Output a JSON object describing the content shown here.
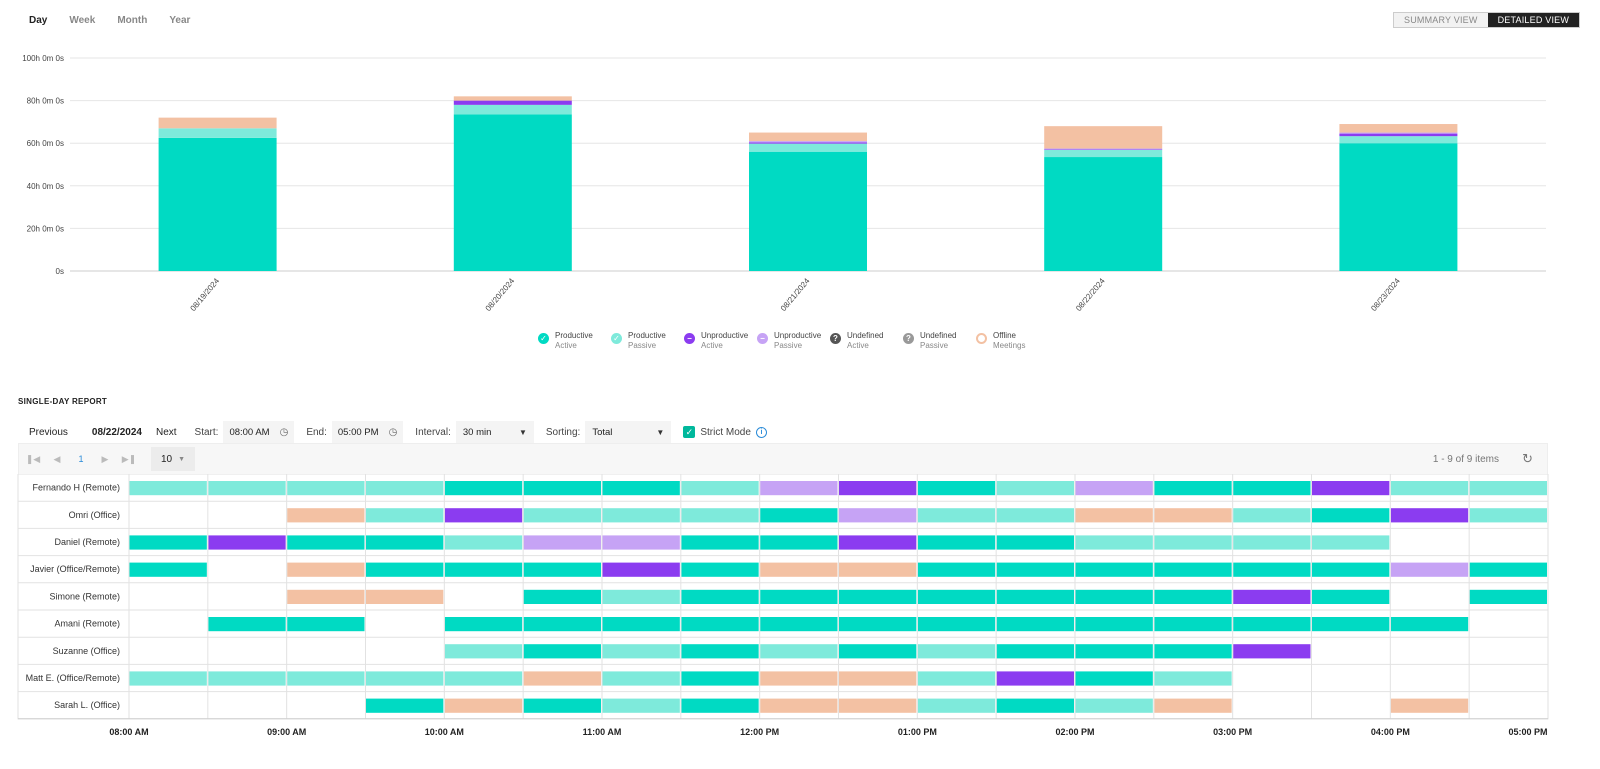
{
  "period_tabs": [
    "Day",
    "Week",
    "Month",
    "Year"
  ],
  "active_tab": "Day",
  "view_toggle": {
    "summary": "SUMMARY VIEW",
    "detailed": "DETAILED VIEW",
    "active": "detailed"
  },
  "colors": {
    "productive_active": "#00dac3",
    "productive_passive": "#7eeadb",
    "unproductive_active": "#8b3cf0",
    "unproductive_passive": "#c6a3f5",
    "undefined_active": "#555555",
    "undefined_passive": "#999999",
    "offline_meetings": "#f3c1a3"
  },
  "chart_data": {
    "type": "bar",
    "stacked": true,
    "categories": [
      "08/19/2024",
      "08/20/2024",
      "08/21/2024",
      "08/22/2024",
      "08/23/2024"
    ],
    "y_ticks": [
      "0s",
      "20h 0m 0s",
      "40h 0m 0s",
      "60h 0m 0s",
      "80h 0m 0s",
      "100h 0m 0s"
    ],
    "ylim": [
      0,
      100
    ],
    "y_unit": "hours",
    "grid": true,
    "legend_position": "bottom",
    "series": [
      {
        "name": "Productive Active",
        "key": "productive_active",
        "values": [
          62.5,
          73.5,
          56,
          53.5,
          60
        ]
      },
      {
        "name": "Productive Passive",
        "key": "productive_passive",
        "values": [
          4.5,
          4.5,
          3.8,
          3.4,
          3.3
        ]
      },
      {
        "name": "Unproductive Active",
        "key": "unproductive_active",
        "values": [
          0,
          2,
          0.6,
          0.3,
          1.2
        ]
      },
      {
        "name": "Unproductive Passive",
        "key": "unproductive_passive",
        "values": [
          0,
          0,
          0.6,
          0.3,
          0.5
        ]
      },
      {
        "name": "Undefined Active",
        "key": "undefined_active",
        "values": [
          0,
          0,
          0,
          0,
          0
        ]
      },
      {
        "name": "Undefined Passive",
        "key": "undefined_passive",
        "values": [
          0,
          0,
          0,
          0,
          0
        ]
      },
      {
        "name": "Offline Meetings",
        "key": "offline_meetings",
        "values": [
          5,
          2,
          4,
          10.5,
          4
        ]
      }
    ]
  },
  "legend": [
    {
      "line1": "Productive",
      "line2": "Active",
      "key": "productive_active",
      "icon": "check"
    },
    {
      "line1": "Productive",
      "line2": "Passive",
      "key": "productive_passive",
      "icon": "check"
    },
    {
      "line1": "Unproductive",
      "line2": "Active",
      "key": "unproductive_active",
      "icon": "minus"
    },
    {
      "line1": "Unproductive",
      "line2": "Passive",
      "key": "unproductive_passive",
      "icon": "minus"
    },
    {
      "line1": "Undefined",
      "line2": "Active",
      "key": "undefined_active",
      "icon": "question"
    },
    {
      "line1": "Undefined",
      "line2": "Passive",
      "key": "undefined_passive",
      "icon": "question"
    },
    {
      "line1": "Offline",
      "line2": "Meetings",
      "key": "offline_meetings",
      "icon": "ring"
    }
  ],
  "report": {
    "title": "SINGLE-DAY REPORT",
    "previous": "Previous",
    "date": "08/22/2024",
    "next": "Next",
    "start_label": "Start:",
    "start_time": "08:00 AM",
    "end_label": "End:",
    "end_time": "05:00 PM",
    "interval_label": "Interval:",
    "interval_value": "30 min",
    "sorting_label": "Sorting:",
    "sorting_value": "Total",
    "strict_mode_label": "Strict Mode",
    "strict_mode": true
  },
  "pager": {
    "current_page": "1",
    "page_size": "10",
    "items_count": "1 - 9 of 9 items"
  },
  "timeline": {
    "time_labels": [
      "08:00 AM",
      "09:00 AM",
      "10:00 AM",
      "11:00 AM",
      "12:00 PM",
      "01:00 PM",
      "02:00 PM",
      "03:00 PM",
      "04:00 PM",
      "05:00 PM"
    ],
    "legend_codes": {
      "A": "productive_active",
      "P": "productive_passive",
      "U": "unproductive_active",
      "V": "unproductive_passive",
      "O": "offline_meetings",
      "-": "none"
    },
    "rows": [
      {
        "name": "Fernando H (Remote)",
        "slots": "PPPPAAAPVUAPVAAUPP"
      },
      {
        "name": "Omri (Office)",
        "slots": "--OPUPPPAVPPOOPAUP"
      },
      {
        "name": "Daniel (Remote)",
        "slots": "AUAAPVVAAUAAPPPP--"
      },
      {
        "name": "Javier (Office/Remote)",
        "slots": "A-OAAAUAOOAAAAAAVA"
      },
      {
        "name": "Simone (Remote)",
        "slots": "--OO-APAAAAAAAUA-A"
      },
      {
        "name": "Amani (Remote)",
        "slots": "-AA-AAAAAAAAAAAAA-"
      },
      {
        "name": "Suzanne (Office)",
        "slots": "----PAPAPAPAAAU---"
      },
      {
        "name": "Matt E. (Office/Remote)",
        "slots": "PPPPPOPAOOPUAP----"
      },
      {
        "name": "Sarah L. (Office)",
        "slots": "---AOAPAOOPAPO--O-"
      }
    ]
  }
}
